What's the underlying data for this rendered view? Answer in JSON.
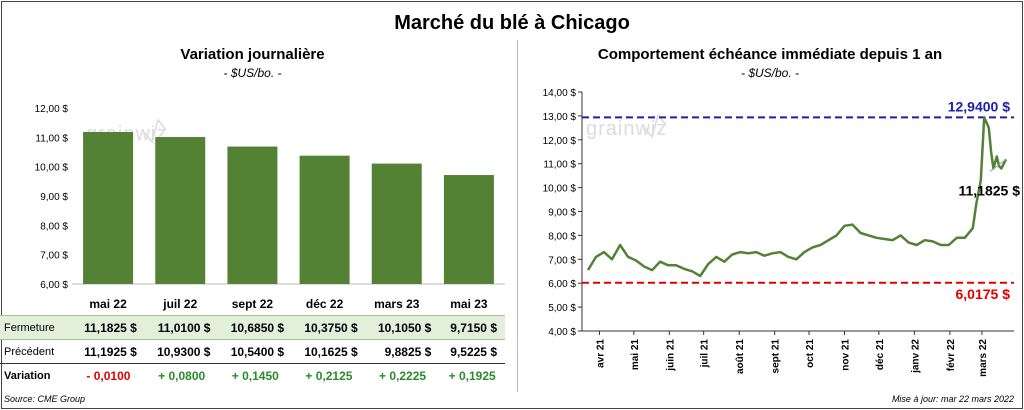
{
  "title": "Marché du blé à Chicago",
  "left_panel": {
    "title": "Variation journalière",
    "subtitle": "- $US/bo. -",
    "row_labels": {
      "close": "Fermeture",
      "previous": "Précédent",
      "change": "Variation"
    },
    "rows": {
      "close": [
        "11,1825 $",
        "11,0100 $",
        "10,6850 $",
        "10,3750 $",
        "10,1050 $",
        "9,7150 $"
      ],
      "previous": [
        "11,1925 $",
        "10,9300 $",
        "10,5400 $",
        "10,1625 $",
        "9,8825 $",
        "9,5225 $"
      ],
      "change": [
        "- 0,0100",
        "+ 0,0800",
        "+ 0,1450",
        "+ 0,2125",
        "+ 0,2225",
        "+ 0,1925"
      ]
    },
    "change_colors": [
      "#e00000",
      "#2a8a2a",
      "#2a8a2a",
      "#2a8a2a",
      "#2a8a2a",
      "#2a8a2a"
    ]
  },
  "right_panel": {
    "title": "Comportement  échéance immédiate depuis 1 an",
    "subtitle": "- $US/bo. -"
  },
  "watermark": "grainwiz",
  "footer": {
    "source": "Source: CME Group",
    "updated": "Mise à jour: mar 22 mars 2022"
  },
  "colors": {
    "bar": "#548235",
    "line": "#548235",
    "high": "#1f1fa8",
    "low": "#e00000",
    "close_row_bg": "#e2efda"
  },
  "chart_data": [
    {
      "type": "bar",
      "title": "Variation journalière",
      "categories": [
        "mai 22",
        "juil 22",
        "sept 22",
        "déc 22",
        "mars 23",
        "mai 23"
      ],
      "values": [
        11.1825,
        11.01,
        10.685,
        10.375,
        10.105,
        9.715
      ],
      "ylim": [
        6,
        12
      ],
      "yticks": [
        6,
        7,
        8,
        9,
        10,
        11,
        12
      ],
      "ytick_labels": [
        "6,00 $",
        "7,00 $",
        "8,00 $",
        "9,00 $",
        "10,00 $",
        "11,00 $",
        "12,00 $"
      ],
      "grid": false
    },
    {
      "type": "line",
      "title": "Comportement  échéance immédiate depuis 1 an",
      "ylim": [
        4,
        14
      ],
      "yticks": [
        4,
        5,
        6,
        7,
        8,
        9,
        10,
        11,
        12,
        13,
        14
      ],
      "ytick_labels": [
        "4,00 $",
        "5,00 $",
        "6,00 $",
        "7,00 $",
        "8,00 $",
        "9,00 $",
        "10,00 $",
        "11,00 $",
        "12,00 $",
        "13,00 $",
        "14,00 $"
      ],
      "xtick_labels": [
        "avr 21",
        "mai 21",
        "juin 21",
        "juil 21",
        "août 21",
        "sept 21",
        "oct 21",
        "nov 21",
        "déc 21",
        "janv 22",
        "févr 22",
        "mars 22"
      ],
      "x": [
        "2021-03-22",
        "2021-03-29",
        "2021-04-05",
        "2021-04-12",
        "2021-04-19",
        "2021-04-26",
        "2021-05-03",
        "2021-05-10",
        "2021-05-17",
        "2021-05-24",
        "2021-05-31",
        "2021-06-07",
        "2021-06-14",
        "2021-06-21",
        "2021-06-28",
        "2021-07-05",
        "2021-07-12",
        "2021-07-19",
        "2021-07-26",
        "2021-08-02",
        "2021-08-09",
        "2021-08-16",
        "2021-08-23",
        "2021-08-30",
        "2021-09-06",
        "2021-09-13",
        "2021-09-20",
        "2021-09-27",
        "2021-10-04",
        "2021-10-11",
        "2021-10-18",
        "2021-10-25",
        "2021-11-01",
        "2021-11-08",
        "2021-11-15",
        "2021-11-22",
        "2021-11-29",
        "2021-12-06",
        "2021-12-13",
        "2021-12-20",
        "2021-12-27",
        "2022-01-03",
        "2022-01-10",
        "2022-01-17",
        "2022-01-24",
        "2022-01-31",
        "2022-02-07",
        "2022-02-14",
        "2022-02-21",
        "2022-02-24",
        "2022-02-28",
        "2022-03-03",
        "2022-03-07",
        "2022-03-09",
        "2022-03-11",
        "2022-03-14",
        "2022-03-16",
        "2022-03-18",
        "2022-03-22"
      ],
      "series": [
        {
          "values": [
            6.55,
            7.1,
            7.3,
            7.0,
            7.6,
            7.1,
            6.95,
            6.7,
            6.55,
            6.9,
            6.75,
            6.75,
            6.6,
            6.5,
            6.3,
            6.8,
            7.1,
            6.9,
            7.2,
            7.3,
            7.25,
            7.3,
            7.15,
            7.25,
            7.3,
            7.1,
            7.0,
            7.3,
            7.5,
            7.6,
            7.8,
            8.0,
            8.4,
            8.45,
            8.1,
            8.0,
            7.9,
            7.85,
            7.8,
            8.0,
            7.7,
            7.6,
            7.8,
            7.75,
            7.6,
            7.6,
            7.9,
            7.9,
            8.3,
            9.3,
            10.3,
            12.94,
            12.5,
            11.5,
            10.8,
            11.3,
            10.9,
            10.8,
            11.1825
          ]
        }
      ],
      "reference_lines": [
        {
          "value": 12.94,
          "label": "12,9400 $",
          "color": "#1f1fa8"
        },
        {
          "value": 6.0175,
          "label": "6,0175 $",
          "color": "#e00000"
        }
      ],
      "last_value_label": "11,1825 $"
    }
  ]
}
